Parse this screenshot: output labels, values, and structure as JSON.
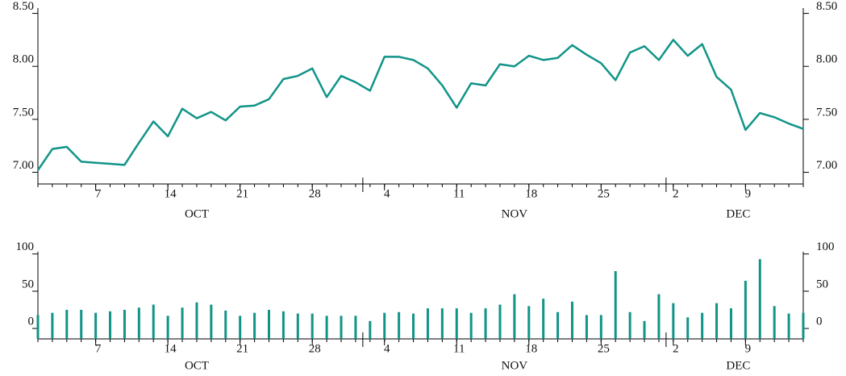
{
  "chart_data": [
    {
      "type": "line",
      "color": "#119488",
      "x": [
        "Oct 1",
        "Oct 2",
        "Oct 3",
        "Oct 4",
        "Oct 7",
        "Oct 8",
        "Oct 9",
        "Oct 10",
        "Oct 11",
        "Oct 14",
        "Oct 15",
        "Oct 16",
        "Oct 17",
        "Oct 18",
        "Oct 21",
        "Oct 22",
        "Oct 23",
        "Oct 24",
        "Oct 25",
        "Oct 28",
        "Oct 29",
        "Oct 30",
        "Oct 31",
        "Nov 1",
        "Nov 4",
        "Nov 5",
        "Nov 6",
        "Nov 7",
        "Nov 8",
        "Nov 11",
        "Nov 12",
        "Nov 13",
        "Nov 14",
        "Nov 15",
        "Nov 18",
        "Nov 19",
        "Nov 20",
        "Nov 21",
        "Nov 22",
        "Nov 25",
        "Nov 26",
        "Nov 27",
        "Nov 28",
        "Nov 29",
        "Dec 2",
        "Dec 3",
        "Dec 4",
        "Dec 5",
        "Dec 6",
        "Dec 9",
        "Dec 10",
        "Dec 11",
        "Dec 12",
        "Dec 13"
      ],
      "values": [
        7.02,
        7.22,
        7.24,
        7.1,
        7.09,
        7.08,
        7.07,
        7.28,
        7.48,
        7.34,
        7.6,
        7.51,
        7.57,
        7.49,
        7.62,
        7.63,
        7.69,
        7.88,
        7.91,
        7.98,
        7.71,
        7.91,
        7.85,
        7.77,
        8.09,
        8.09,
        8.06,
        7.98,
        7.82,
        7.61,
        7.84,
        7.82,
        8.02,
        8.0,
        8.1,
        8.06,
        8.08,
        8.2,
        8.11,
        8.03,
        7.87,
        8.13,
        8.19,
        8.06,
        8.25,
        8.1,
        8.21,
        7.9,
        7.78,
        7.4,
        7.56,
        7.52,
        7.46,
        7.41
      ],
      "ylim": [
        6.89,
        8.55
      ],
      "yticks": [
        {
          "value": 7,
          "label": "7.00"
        },
        {
          "value": 7.5,
          "label": "7.50"
        },
        {
          "value": 8,
          "label": "8.00"
        },
        {
          "value": 8.5,
          "label": "8.50"
        }
      ],
      "xticks": [
        {
          "value": "Oct 7",
          "label": "7"
        },
        {
          "value": "Oct 14",
          "label": "14"
        },
        {
          "value": "Oct 21",
          "label": "21"
        },
        {
          "value": "Oct 28",
          "label": "28"
        },
        {
          "value": "Nov 4",
          "label": "4"
        },
        {
          "value": "Nov 11",
          "label": "11"
        },
        {
          "value": "Nov 18",
          "label": "18"
        },
        {
          "value": "Nov 25",
          "label": "25"
        },
        {
          "value": "Dec 2",
          "label": "2"
        },
        {
          "value": "Dec 9",
          "label": "9"
        }
      ],
      "months": [
        {
          "value": "Oct 1",
          "label": "OCT"
        },
        {
          "value": "Nov 1",
          "label": "NOV"
        },
        {
          "value": "Dec 2",
          "label": "DEC"
        }
      ]
    },
    {
      "type": "bar",
      "color": "#119488",
      "x": [
        "Oct 1",
        "Oct 2",
        "Oct 3",
        "Oct 4",
        "Oct 7",
        "Oct 8",
        "Oct 9",
        "Oct 10",
        "Oct 11",
        "Oct 14",
        "Oct 15",
        "Oct 16",
        "Oct 17",
        "Oct 18",
        "Oct 21",
        "Oct 22",
        "Oct 23",
        "Oct 24",
        "Oct 25",
        "Oct 28",
        "Oct 29",
        "Oct 30",
        "Oct 31",
        "Nov 1",
        "Nov 4",
        "Nov 5",
        "Nov 6",
        "Nov 7",
        "Nov 8",
        "Nov 11",
        "Nov 12",
        "Nov 13",
        "Nov 14",
        "Nov 15",
        "Nov 18",
        "Nov 19",
        "Nov 20",
        "Nov 21",
        "Nov 22",
        "Nov 25",
        "Nov 26",
        "Nov 27",
        "Nov 28",
        "Nov 29",
        "Dec 2",
        "Dec 3",
        "Dec 4",
        "Dec 5",
        "Dec 6",
        "Dec 9",
        "Dec 10",
        "Dec 11",
        "Dec 12",
        "Dec 13"
      ],
      "values": [
        18,
        21,
        25,
        25,
        21,
        23,
        25,
        28,
        32,
        17,
        28,
        35,
        32,
        24,
        17,
        21,
        25,
        23,
        20,
        20,
        17,
        17,
        17,
        10,
        21,
        22,
        20,
        27,
        27,
        27,
        21,
        27,
        32,
        46,
        30,
        40,
        22,
        36,
        18,
        18,
        77,
        22,
        10,
        46,
        34,
        15,
        21,
        34,
        27,
        64,
        93,
        30,
        20,
        21
      ],
      "ylim": [
        -14,
        103
      ],
      "yticks": [
        0,
        50,
        100
      ],
      "xticks": [
        {
          "value": "Oct 7",
          "label": "7"
        },
        {
          "value": "Oct 14",
          "label": "14"
        },
        {
          "value": "Oct 21",
          "label": "21"
        },
        {
          "value": "Oct 28",
          "label": "28"
        },
        {
          "value": "Nov 4",
          "label": "4"
        },
        {
          "value": "Nov 11",
          "label": "11"
        },
        {
          "value": "Nov 18",
          "label": "18"
        },
        {
          "value": "Nov 25",
          "label": "25"
        },
        {
          "value": "Dec 2",
          "label": "2"
        },
        {
          "value": "Dec 9",
          "label": "9"
        }
      ],
      "months": [
        {
          "value": "Oct 1",
          "label": "OCT"
        },
        {
          "value": "Nov 1",
          "label": "NOV"
        },
        {
          "value": "Dec 2",
          "label": "DEC"
        }
      ]
    }
  ]
}
